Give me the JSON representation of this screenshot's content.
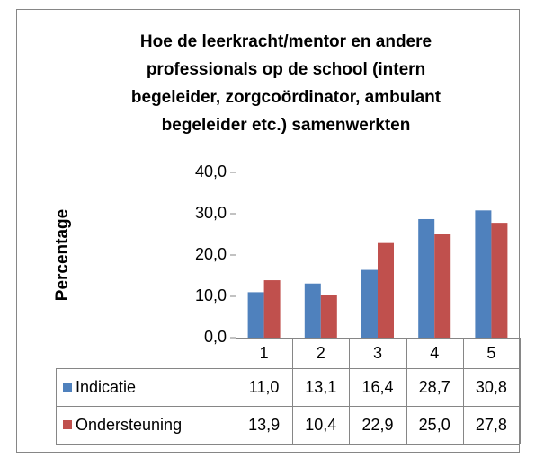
{
  "chart_data": {
    "type": "bar",
    "title": [
      "Hoe de leerkracht/mentor en andere",
      "professionals op de school (intern",
      "begeleider, zorgcoördinator, ambulant",
      "begeleider etc.) samenwerkten"
    ],
    "ylabel": "Percentage",
    "categories": [
      "1",
      "2",
      "3",
      "4",
      "5"
    ],
    "series": [
      {
        "name": "Indicatie",
        "color": "#4f81bd",
        "values": [
          11.0,
          13.1,
          16.4,
          28.7,
          30.8
        ],
        "value_labels": [
          "11,0",
          "13,1",
          "16,4",
          "28,7",
          "30,8"
        ]
      },
      {
        "name": "Ondersteuning",
        "color": "#c0504d",
        "values": [
          13.9,
          10.4,
          22.9,
          25.0,
          27.8
        ],
        "value_labels": [
          "13,9",
          "10,4",
          "22,9",
          "25,0",
          "27,8"
        ]
      }
    ],
    "ylim": [
      0,
      40
    ],
    "yticks": [
      {
        "value": 0,
        "label": "0,0"
      },
      {
        "value": 10,
        "label": "10,0"
      },
      {
        "value": 20,
        "label": "20,0"
      },
      {
        "value": 30,
        "label": "30,0"
      },
      {
        "value": 40,
        "label": "40,0"
      }
    ],
    "grid": false,
    "data_table": true
  }
}
